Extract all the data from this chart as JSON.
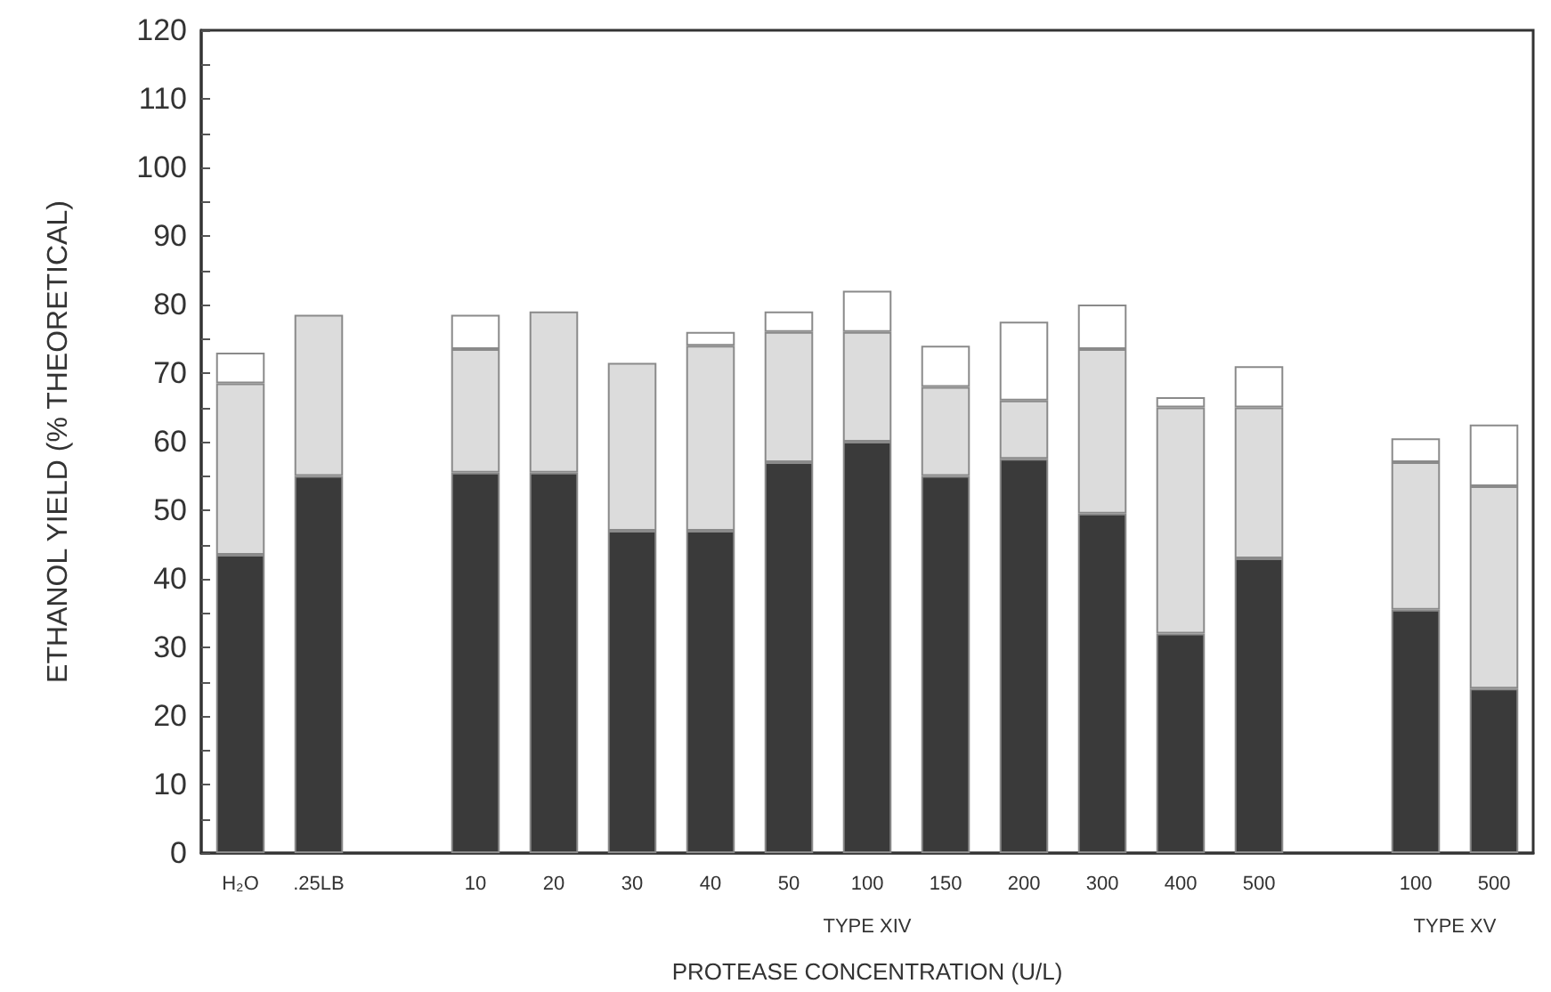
{
  "chart_data": {
    "type": "bar",
    "stacked": true,
    "xlabel": "PROTEASE CONCENTRATION (U/L)",
    "ylabel": "ETHANOL YIELD (% THEORETICAL)",
    "categories": [
      "H₂O",
      ".25LB",
      null,
      "10",
      "20",
      "30",
      "40",
      "50",
      "100",
      "150",
      "200",
      "300",
      "400",
      "500",
      null,
      "100",
      "500"
    ],
    "series": [
      {
        "color": "#3a3a3a",
        "values": [
          43.5,
          55,
          null,
          55.5,
          55.5,
          47,
          47,
          57,
          60,
          55,
          57.5,
          49.5,
          32,
          43,
          null,
          35.5,
          24
        ]
      },
      {
        "color": "#dcdcdc",
        "values": [
          25,
          23.5,
          null,
          18,
          23.5,
          24.5,
          27,
          19,
          16,
          13,
          8.5,
          24,
          33,
          22,
          null,
          21.5,
          29.5
        ]
      },
      {
        "color": "#ffffff",
        "values": [
          4.5,
          0,
          null,
          5,
          0,
          0,
          2,
          3,
          6,
          6,
          11.5,
          6.5,
          1.5,
          6,
          null,
          3.5,
          9
        ]
      }
    ],
    "ylim": [
      0,
      120
    ],
    "yticks": [
      0,
      {
        "value": 5,
        "label": null
      },
      10,
      {
        "value": 15,
        "label": null
      },
      20,
      {
        "value": 25,
        "label": null
      },
      30,
      {
        "value": 35,
        "label": null
      },
      40,
      {
        "value": 45,
        "label": null
      },
      50,
      {
        "value": 55,
        "label": null
      },
      60,
      {
        "value": 65,
        "label": null
      },
      70,
      {
        "value": 75,
        "label": null
      },
      80,
      {
        "value": 85,
        "label": null
      },
      90,
      {
        "value": 95,
        "label": null
      },
      100,
      {
        "value": 105,
        "label": null
      },
      110,
      {
        "value": 115,
        "label": null
      },
      120
    ],
    "grid": false,
    "annotations": [
      "TYPE XIV",
      "TYPE XV"
    ]
  }
}
